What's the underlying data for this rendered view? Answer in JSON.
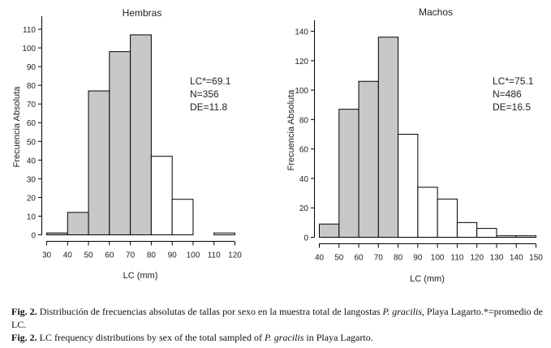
{
  "chart_data": [
    {
      "type": "bar",
      "title": "Hembras",
      "xlabel": "LC (mm)",
      "ylabel": "Frecuencia Absoluta",
      "x_ticks": [
        30,
        40,
        50,
        60,
        70,
        80,
        90,
        100,
        110,
        120
      ],
      "y_ticks": [
        0,
        10,
        20,
        30,
        40,
        50,
        60,
        70,
        80,
        90,
        100,
        110
      ],
      "xlim": [
        30,
        120
      ],
      "ylim": [
        0,
        115
      ],
      "bins": [
        {
          "from": 30,
          "to": 40,
          "value": 1,
          "shaded": true
        },
        {
          "from": 40,
          "to": 50,
          "value": 12,
          "shaded": true
        },
        {
          "from": 50,
          "to": 60,
          "value": 77,
          "shaded": true
        },
        {
          "from": 60,
          "to": 70,
          "value": 98,
          "shaded": true
        },
        {
          "from": 70,
          "to": 80,
          "value": 107,
          "shaded": true
        },
        {
          "from": 80,
          "to": 90,
          "value": 42,
          "shaded": false
        },
        {
          "from": 90,
          "to": 100,
          "value": 19,
          "shaded": false
        },
        {
          "from": 100,
          "to": 110,
          "value": 0,
          "shaded": false
        },
        {
          "from": 110,
          "to": 120,
          "value": 1,
          "shaded": false
        }
      ],
      "annotation": [
        "LC*=69.1",
        "N=356",
        "DE=11.8"
      ],
      "colors": {
        "shaded": "#c8c8c8",
        "open": "#ffffff",
        "stroke": "#000000"
      }
    },
    {
      "type": "bar",
      "title": "Machos",
      "xlabel": "LC (mm)",
      "ylabel": "Frecuencia Absoluta",
      "x_ticks": [
        40,
        50,
        60,
        70,
        80,
        90,
        100,
        110,
        120,
        130,
        140,
        150
      ],
      "y_ticks": [
        0,
        20,
        40,
        60,
        80,
        100,
        120,
        140
      ],
      "xlim": [
        40,
        150
      ],
      "ylim": [
        0,
        145
      ],
      "bins": [
        {
          "from": 40,
          "to": 50,
          "value": 9,
          "shaded": true
        },
        {
          "from": 50,
          "to": 60,
          "value": 87,
          "shaded": true
        },
        {
          "from": 60,
          "to": 70,
          "value": 106,
          "shaded": true
        },
        {
          "from": 70,
          "to": 80,
          "value": 136,
          "shaded": true
        },
        {
          "from": 80,
          "to": 90,
          "value": 70,
          "shaded": false
        },
        {
          "from": 90,
          "to": 100,
          "value": 34,
          "shaded": false
        },
        {
          "from": 100,
          "to": 110,
          "value": 26,
          "shaded": false
        },
        {
          "from": 110,
          "to": 120,
          "value": 10,
          "shaded": false
        },
        {
          "from": 120,
          "to": 130,
          "value": 6,
          "shaded": false
        },
        {
          "from": 130,
          "to": 140,
          "value": 1,
          "shaded": false
        },
        {
          "from": 140,
          "to": 150,
          "value": 1,
          "shaded": false
        }
      ],
      "annotation": [
        "LC*=75.1",
        "N=486",
        "DE=16.5"
      ],
      "colors": {
        "shaded": "#c8c8c8",
        "open": "#ffffff",
        "stroke": "#000000"
      }
    }
  ],
  "caption": {
    "line1_label": "Fig. 2.",
    "line1_text_a": " Distribución de frecuencias absolutas de tallas por sexo en la muestra total de langostas ",
    "line1_species": "P. gracilis",
    "line1_text_b": ", Playa Lagarto.*=promedio de LC.",
    "line2_label": "Fig. 2.",
    "line2_text_a": " LC frequency distributions by sex of the total sampled of ",
    "line2_species": "P. gracilis",
    "line2_text_b": " in Playa Lagarto."
  }
}
